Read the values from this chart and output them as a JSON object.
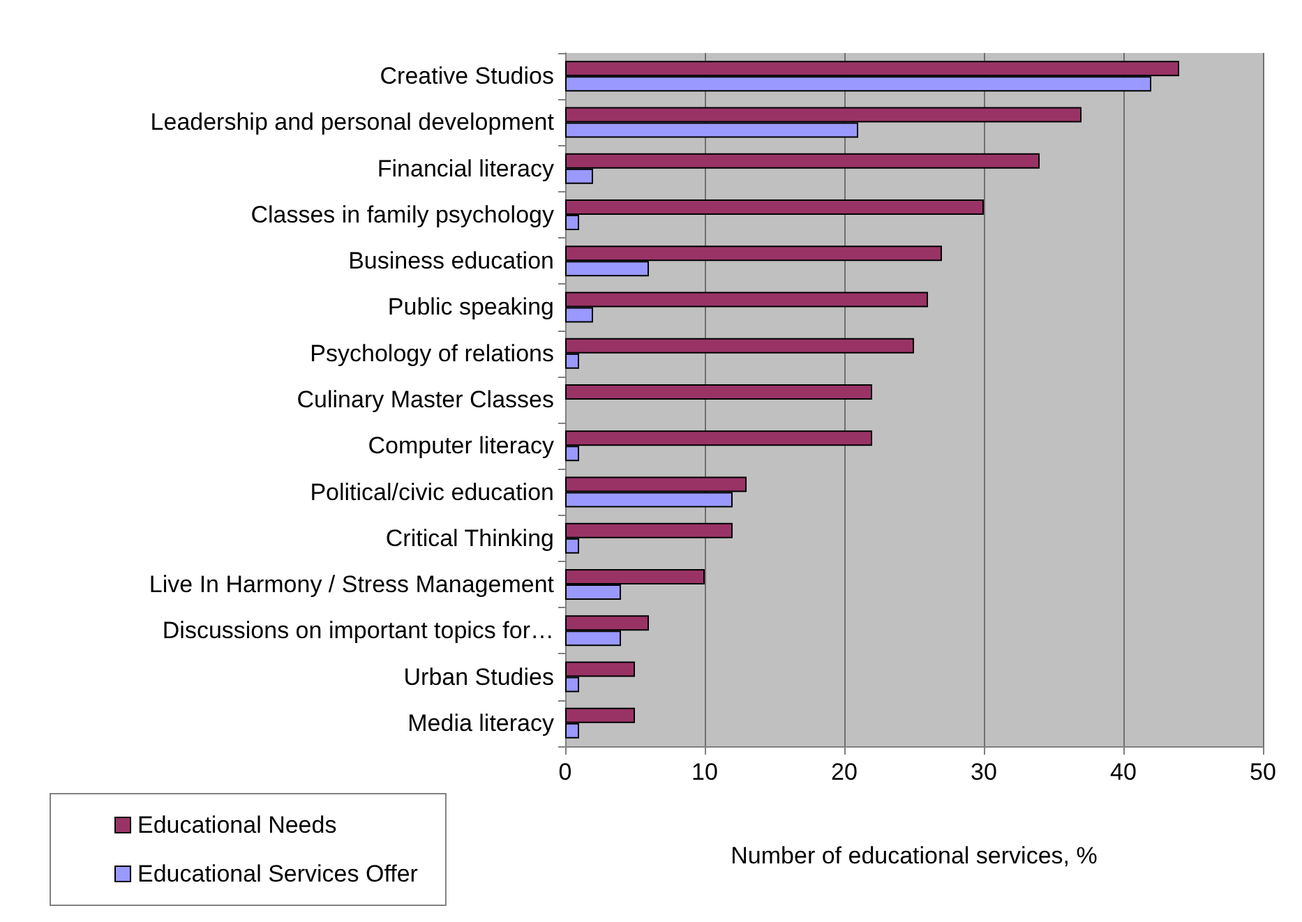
{
  "chart_data": {
    "type": "bar",
    "orientation": "horizontal",
    "xlabel": "Number of educational services, %",
    "categories": [
      "Creative Studios",
      "Leadership and personal development",
      "Financial literacy",
      "Classes in family psychology",
      "Business education",
      "Public speaking",
      "Psychology of relations",
      "Culinary Master Classes",
      "Computer literacy",
      "Political/civic education",
      "Critical Thinking",
      "Live In Harmony / Stress Management",
      "Discussions on important topics for…",
      "Urban Studies",
      "Media literacy"
    ],
    "series": [
      {
        "name": "Educational Needs",
        "color": "#993366",
        "values": [
          44,
          37,
          34,
          30,
          27,
          26,
          25,
          22,
          22,
          13,
          12,
          10,
          6,
          5,
          5
        ]
      },
      {
        "name": "Educational Services Offer",
        "color": "#9999ff",
        "values": [
          42,
          21,
          2,
          1,
          6,
          2,
          1,
          null,
          1,
          12,
          1,
          4,
          4,
          1,
          1
        ]
      }
    ],
    "xlim": [
      0,
      50
    ],
    "xticks": [
      0,
      10,
      20,
      30,
      40,
      50
    ],
    "grid": "x",
    "legend": "bottom left"
  }
}
